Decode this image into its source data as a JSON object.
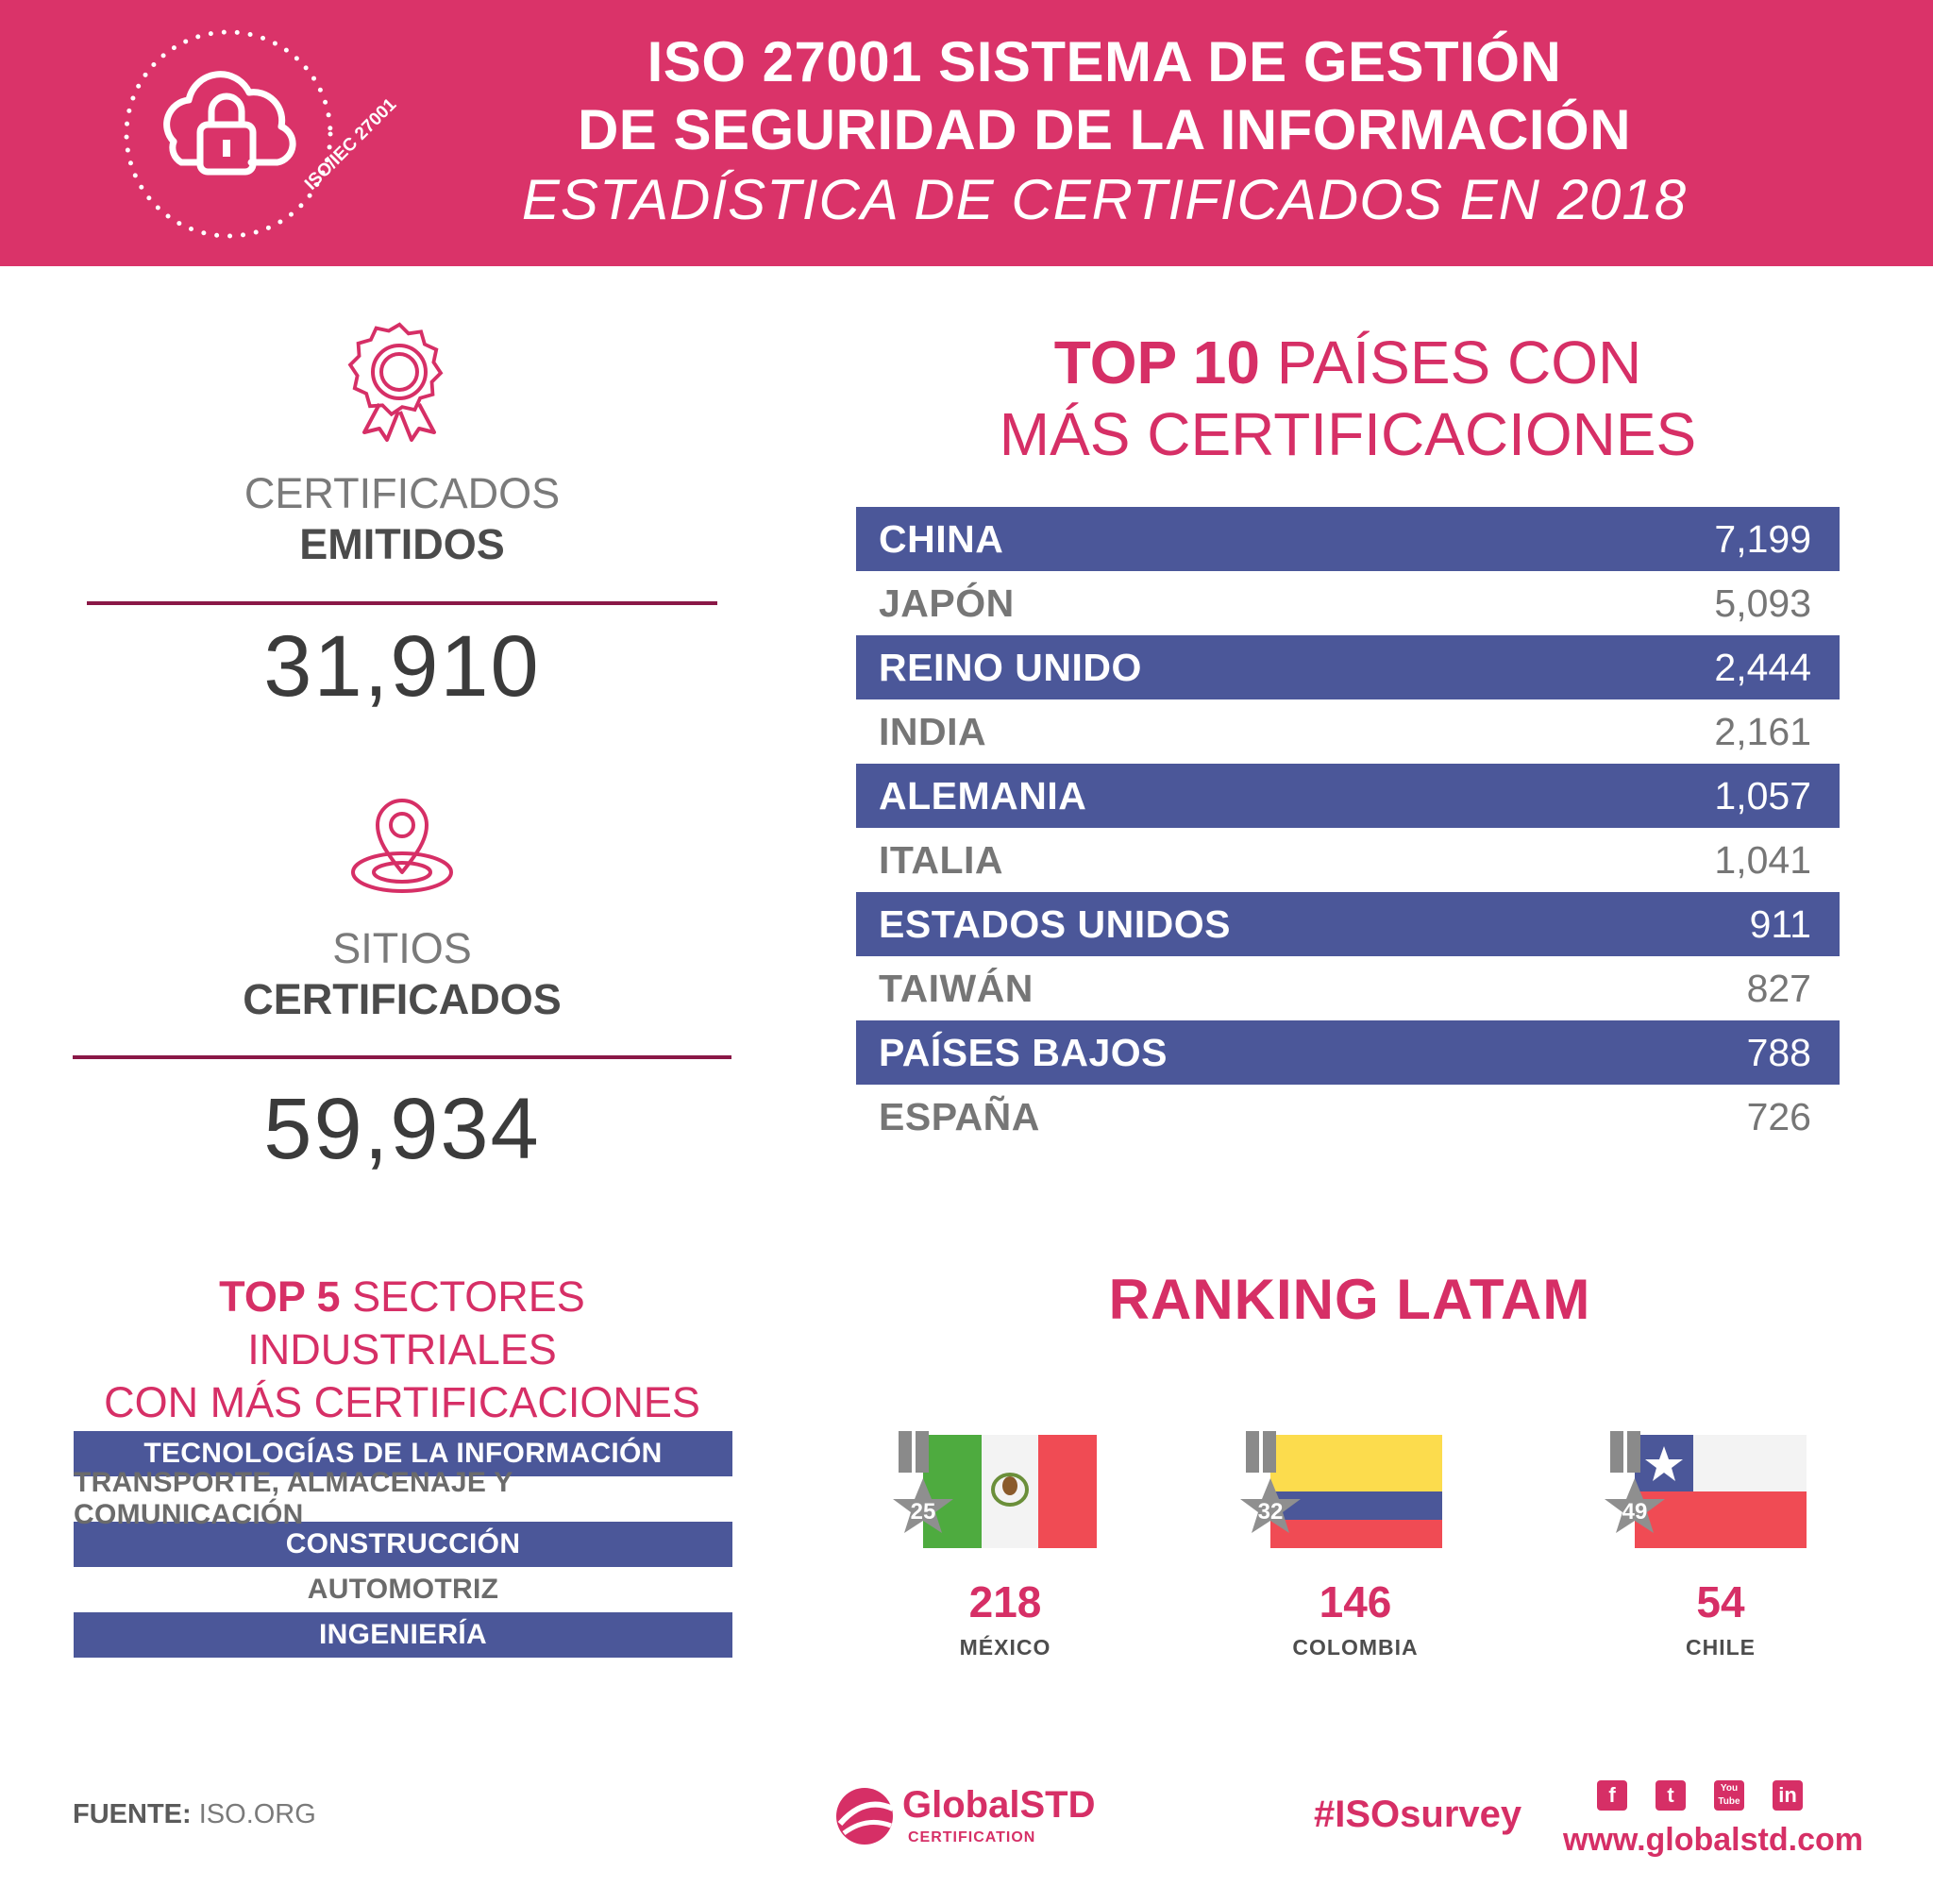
{
  "header": {
    "title_line1": "ISO 27001 SISTEMA DE GESTIÓN",
    "title_line2": "DE SEGURIDAD DE LA INFORMACIÓN",
    "subtitle": "ESTADÍSTICA DE CERTIFICADOS EN 2018",
    "seal_text": "ISO/IEC 27001"
  },
  "stats": [
    {
      "label_light": "CERTIFICADOS",
      "label_bold": "EMITIDOS",
      "value": "31,910",
      "icon": "award-ribbon-icon"
    },
    {
      "label_light": "SITIOS",
      "label_bold": "CERTIFICADOS",
      "value": "59,934",
      "icon": "location-pin-icon"
    }
  ],
  "top10": {
    "title_bold": "TOP 10",
    "title_rest": "PAÍSES CON",
    "title_line2": "MÁS CERTIFICACIONES",
    "rows": [
      {
        "country": "CHINA",
        "value": "7,199"
      },
      {
        "country": "JAPÓN",
        "value": "5,093"
      },
      {
        "country": "REINO UNIDO",
        "value": "2,444"
      },
      {
        "country": "INDIA",
        "value": "2,161"
      },
      {
        "country": "ALEMANIA",
        "value": "1,057"
      },
      {
        "country": "ITALIA",
        "value": "1,041"
      },
      {
        "country": "ESTADOS UNIDOS",
        "value": "911"
      },
      {
        "country": "TAIWÁN",
        "value": "827"
      },
      {
        "country": "PAÍSES BAJOS",
        "value": "788"
      },
      {
        "country": "ESPAÑA",
        "value": "726"
      }
    ]
  },
  "sectors": {
    "title_bold": "TOP 5",
    "title_rest": "SECTORES INDUSTRIALES",
    "title_line2": "CON MÁS CERTIFICACIONES",
    "rows": [
      "TECNOLOGÍAS DE LA INFORMACIÓN",
      "TRANSPORTE, ALMACENAJE Y COMUNICACIÓN",
      "CONSTRUCCIÓN",
      "AUTOMOTRIZ",
      "INGENIERÍA"
    ]
  },
  "latam": {
    "title": "RANKING LATAM",
    "items": [
      {
        "rank": "25",
        "value": "218",
        "country": "MÉXICO",
        "flag": "mexico-flag-icon"
      },
      {
        "rank": "32",
        "value": "146",
        "country": "COLOMBIA",
        "flag": "colombia-flag-icon"
      },
      {
        "rank": "49",
        "value": "54",
        "country": "CHILE",
        "flag": "chile-flag-icon"
      }
    ]
  },
  "footer": {
    "source_bold": "FUENTE:",
    "source_rest": "ISO.ORG",
    "brand_name": "GlobalSTD",
    "brand_sub": "CERTIFICATION",
    "hashtag": "#ISOsurvey",
    "social": [
      "f",
      "t",
      "You Tube",
      "in"
    ],
    "url": "www.globalstd.com"
  },
  "colors": {
    "brand_pink": "#da3369",
    "row_blue": "#4b5799",
    "rule_maroon": "#8a1847"
  }
}
